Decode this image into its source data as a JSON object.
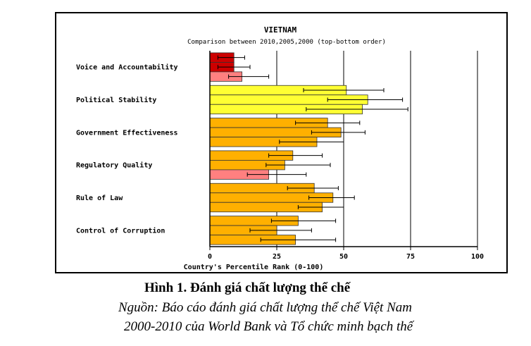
{
  "chart_data": {
    "type": "bar",
    "orientation": "horizontal",
    "title": "VIETNAM",
    "subtitle": "Comparison between 2010,2005,2000 (top-bottom order)",
    "xlabel": "Country's Percentile Rank (0-100)",
    "ylabel": "",
    "xlim": [
      0,
      100
    ],
    "xticks": [
      "0",
      "25",
      "50",
      "75",
      "100"
    ],
    "grid": true,
    "series_order": [
      "2010",
      "2005",
      "2000"
    ],
    "categories": [
      "Voice and Accountability",
      "Political Stability",
      "Government Effectiveness",
      "Regulatory Quality",
      "Rule of Law",
      "Control of Corruption"
    ],
    "values": [
      [
        9,
        9,
        12
      ],
      [
        51,
        59,
        57
      ],
      [
        44,
        49,
        40
      ],
      [
        31,
        28,
        22
      ],
      [
        39,
        46,
        42
      ],
      [
        33,
        25,
        32
      ]
    ],
    "errors": [
      [
        [
          3,
          13
        ],
        [
          3,
          15
        ],
        [
          7,
          22
        ]
      ],
      [
        [
          35,
          65
        ],
        [
          44,
          72
        ],
        [
          36,
          74
        ]
      ],
      [
        [
          32,
          56
        ],
        [
          38,
          58
        ],
        [
          26,
          50
        ]
      ],
      [
        [
          22,
          42
        ],
        [
          21,
          45
        ],
        [
          14,
          36
        ]
      ],
      [
        [
          29,
          48
        ],
        [
          37,
          54
        ],
        [
          33,
          50
        ]
      ],
      [
        [
          23,
          47
        ],
        [
          15,
          38
        ],
        [
          19,
          47
        ]
      ]
    ],
    "colors": [
      [
        "#cc0000",
        "#cc0000",
        "#ff8080"
      ],
      [
        "#ffff33",
        "#ffff33",
        "#ffff33"
      ],
      [
        "#ffb000",
        "#ffb000",
        "#ffb000"
      ],
      [
        "#ffb000",
        "#ffb000",
        "#ff8080"
      ],
      [
        "#ffb000",
        "#ffb000",
        "#ffb000"
      ],
      [
        "#ffb000",
        "#ffb000",
        "#ffb000"
      ]
    ]
  },
  "caption": {
    "figure": "Hình 1. Đánh giá chất lượng thể chế",
    "source_line1": "Nguồn: Báo cáo đánh giá chất lượng thể chế Việt Nam",
    "source_line2": "2000-2010 của World Bank và Tổ chức minh bạch thế"
  }
}
